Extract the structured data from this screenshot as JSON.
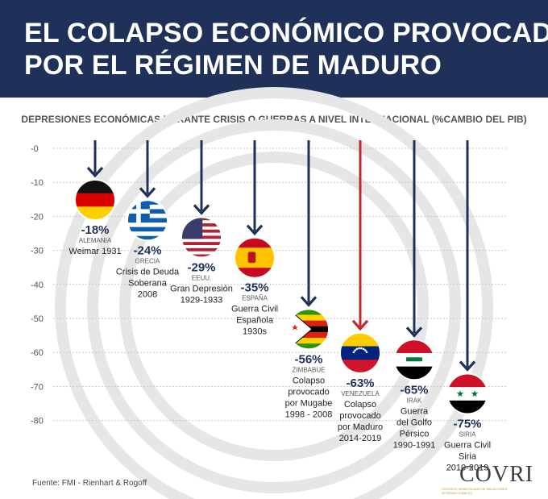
{
  "header": {
    "title_line1": "EL COLAPSO ECONÓMICO PROVOCADO",
    "title_line2": "POR EL RÉGIMEN DE MADURO"
  },
  "colors": {
    "header_bg": "#1f3158",
    "arrow": "#1f3158",
    "arrow_highlight": "#c1272d",
    "value_text": "#1f3158",
    "watermark": "#e6e6e6",
    "gridline": "#c8c8c8"
  },
  "chart_data": {
    "type": "bar",
    "title": "DEPRESIONES ECONÓMICAS DURANTE CRISIS O GUERRAS A NIVEL INTERNACIONAL (%CAMBIO DEL PIB)",
    "xlabel": "",
    "ylabel": "",
    "ylim": [
      -80,
      0
    ],
    "y_ticks": [
      "-0",
      "-10",
      "-20",
      "-30",
      "-40",
      "-50",
      "-60",
      "-70",
      "-80"
    ],
    "grid": true,
    "categories": [
      {
        "value": -18,
        "value_label": "-18%",
        "country": "ALEMANIA",
        "desc": [
          "Weimar 1931"
        ],
        "flag": "germany-flag",
        "highlight": false
      },
      {
        "value": -24,
        "value_label": "-24%",
        "country": "GRECIA",
        "desc": [
          "Crisis de Deuda",
          "Soberana",
          "2008"
        ],
        "flag": "greece-flag",
        "highlight": false
      },
      {
        "value": -29,
        "value_label": "-29%",
        "country": "EEUU.",
        "desc": [
          "Gran Depresión",
          "1929-1933"
        ],
        "flag": "usa-flag",
        "highlight": false
      },
      {
        "value": -35,
        "value_label": "-35%",
        "country": "ESPAÑA",
        "desc": [
          "Guerra Civil",
          "Española",
          "1930s"
        ],
        "flag": "spain-flag",
        "highlight": false
      },
      {
        "value": -56,
        "value_label": "-56%",
        "country": "ZIMBABUE",
        "desc": [
          "Colapso",
          "provocado",
          "por Mugabe",
          "1998 - 2008"
        ],
        "flag": "zimbabwe-flag",
        "highlight": false
      },
      {
        "value": -63,
        "value_label": "-63%",
        "country": "VENEZUELA",
        "desc": [
          "Colapso",
          "provocado",
          "por Maduro",
          "2014-2019"
        ],
        "flag": "venezuela-flag",
        "highlight": true
      },
      {
        "value": -65,
        "value_label": "-65%",
        "country": "IRAK",
        "desc": [
          "Guerra",
          "del Golfo",
          "Pérsico",
          "1990-1991"
        ],
        "flag": "iraq-flag",
        "highlight": false
      },
      {
        "value": -75,
        "value_label": "-75%",
        "country": "SIRIA",
        "desc": [
          "Guerra Civil",
          "Siria",
          "2010-2019"
        ],
        "flag": "syria-flag",
        "highlight": false
      }
    ]
  },
  "footer": {
    "source": "Fuente: FMI - Rienhart & Rogoff",
    "logo": "COVRI",
    "logo_sub": "CONSEJO VENEZOLANO DE RELACIONES INTERNACIONALES"
  }
}
